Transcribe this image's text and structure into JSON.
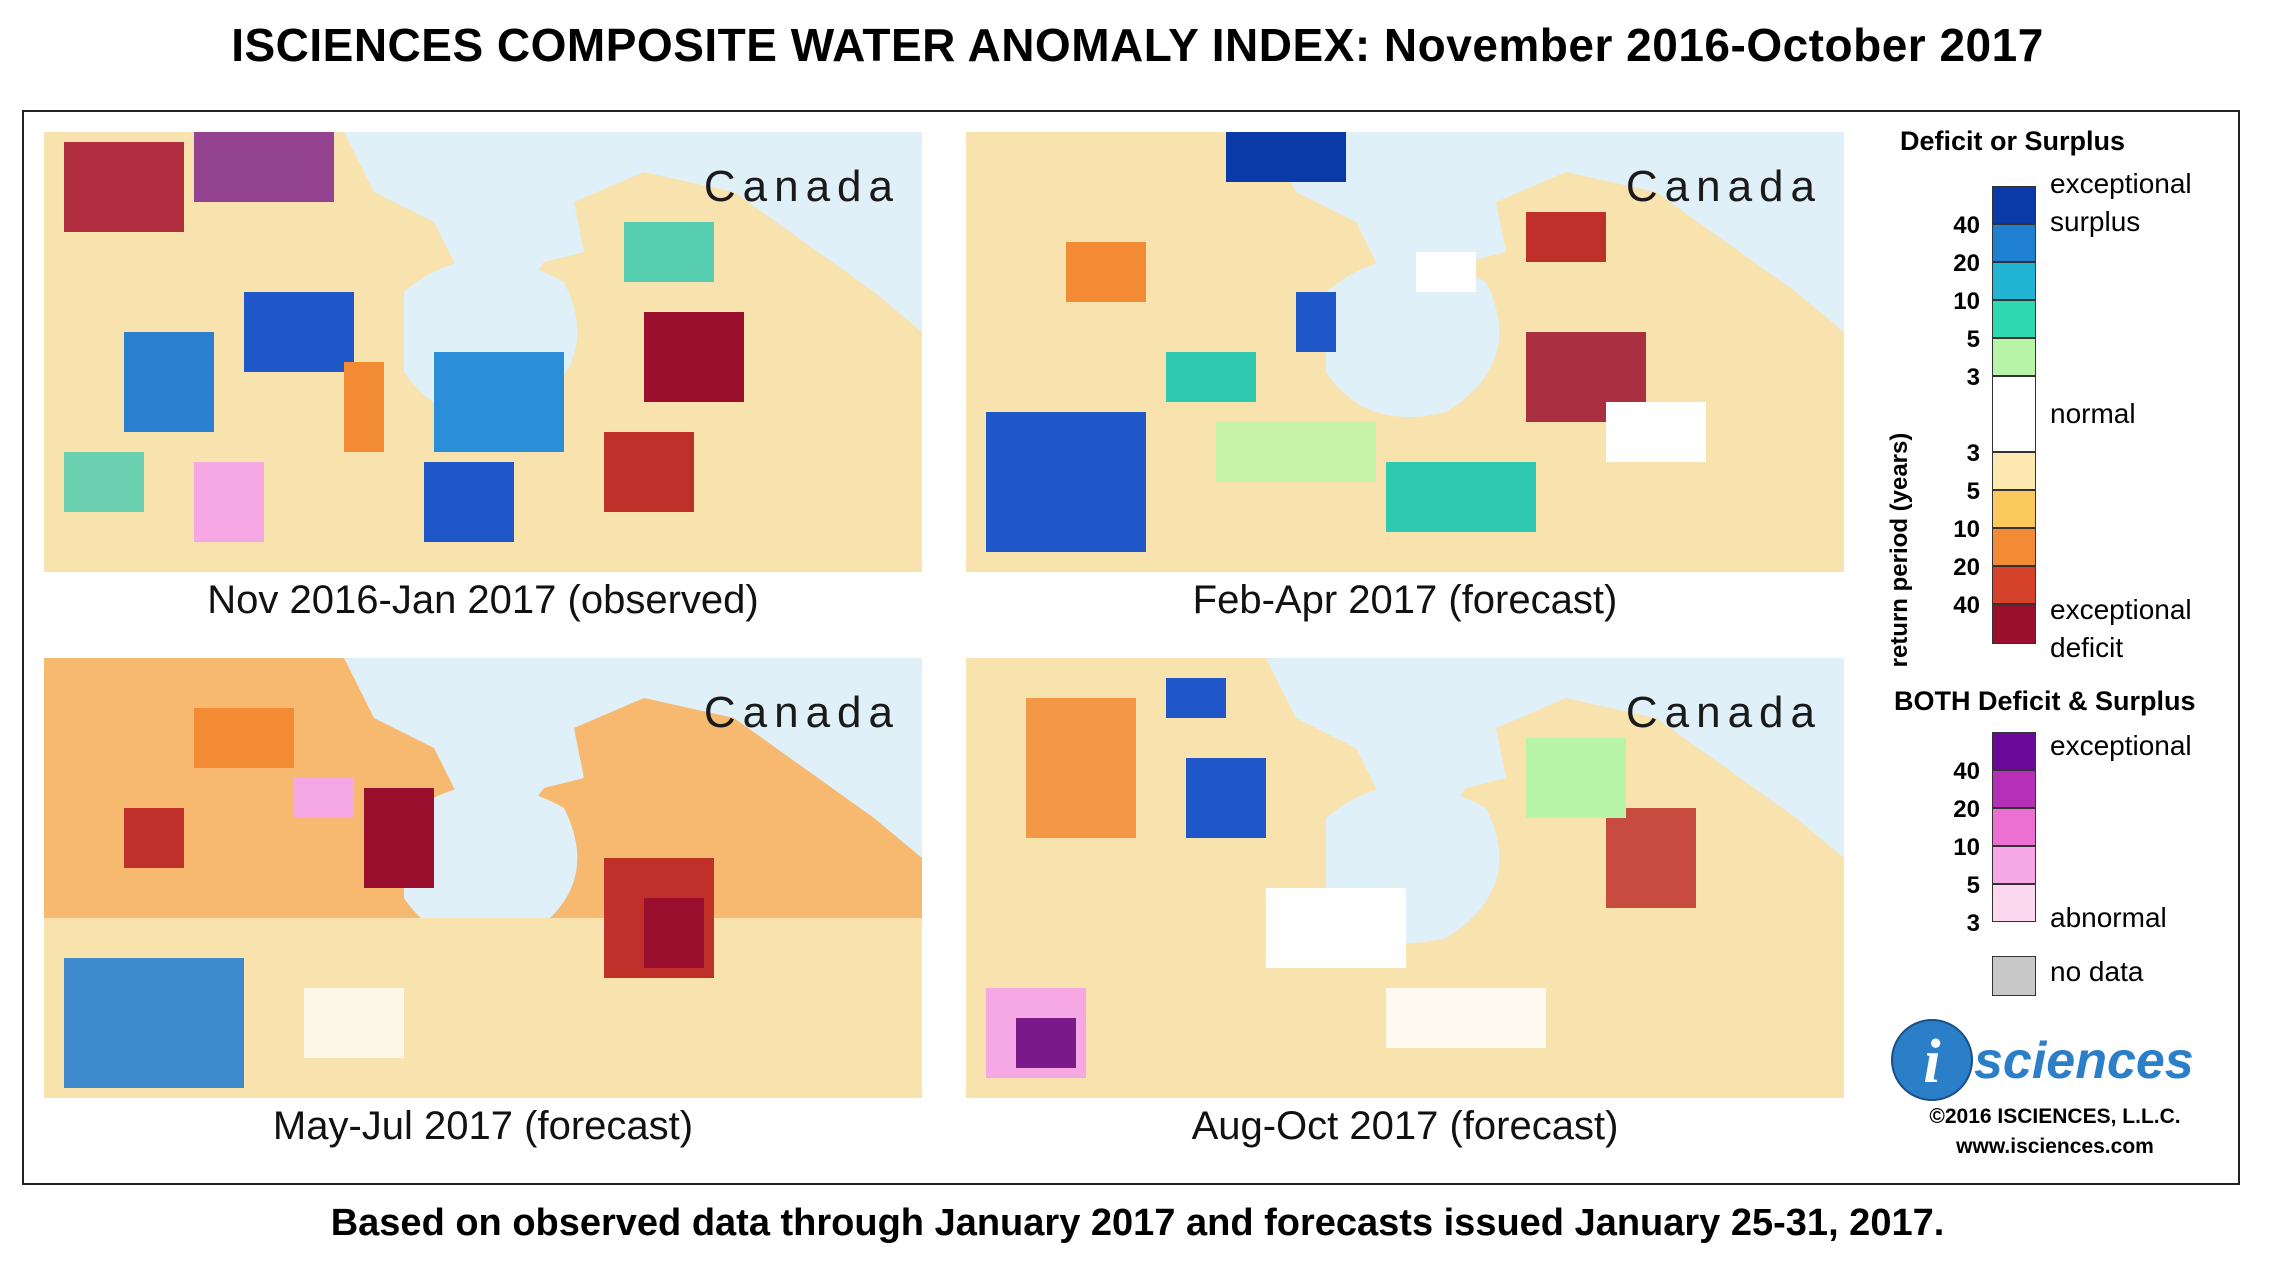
{
  "title": "ISCIENCES COMPOSITE WATER ANOMALY INDEX: November 2016-October 2017",
  "footer": "Based on observed data through January 2017 and forecasts issued January 25-31, 2017.",
  "panels": [
    {
      "region": "Canada",
      "caption": "Nov 2016-Jan 2017 (observed)"
    },
    {
      "region": "Canada",
      "caption": "Feb-Apr 2017 (forecast)"
    },
    {
      "region": "Canada",
      "caption": "May-Jul 2017 (forecast)"
    },
    {
      "region": "Canada",
      "caption": "Aug-Oct 2017 (forecast)"
    }
  ],
  "legend": {
    "deficit_surplus_title": "Deficit or Surplus",
    "axis_label": "return period (years)",
    "surplus_text_1": "exceptional",
    "surplus_text_2": "surplus",
    "normal_text": "normal",
    "deficit_text_1": "exceptional",
    "deficit_text_2": "deficit",
    "surplus_ticks": [
      "40",
      "20",
      "10",
      "5",
      "3"
    ],
    "deficit_ticks": [
      "3",
      "5",
      "10",
      "20",
      "40"
    ],
    "surplus_colors": [
      "#0a3aa8",
      "#1f7fd0",
      "#22b4d4",
      "#2ed9b0",
      "#b9f5a8"
    ],
    "normal_color": "#ffffff",
    "deficit_colors": [
      "#fde8b2",
      "#fbc95c",
      "#f38a34",
      "#d5412a",
      "#9b0f2e"
    ],
    "both_title": "BOTH Deficit & Surplus",
    "both_text_top": "exceptional",
    "both_text_bottom": "abnormal",
    "both_ticks": [
      "40",
      "20",
      "10",
      "5",
      "3"
    ],
    "both_colors": [
      "#6a0a9a",
      "#b52fb7",
      "#ec6fd2",
      "#f5a8e3",
      "#fbd8f0"
    ],
    "nodata_text": "no data",
    "nodata_color": "#c8c8c8",
    "logo_text": "sciences",
    "logo_letter": "i",
    "copyright": "©2016 ISCIENCES, L.L.C.",
    "website": "www.isciences.com"
  }
}
